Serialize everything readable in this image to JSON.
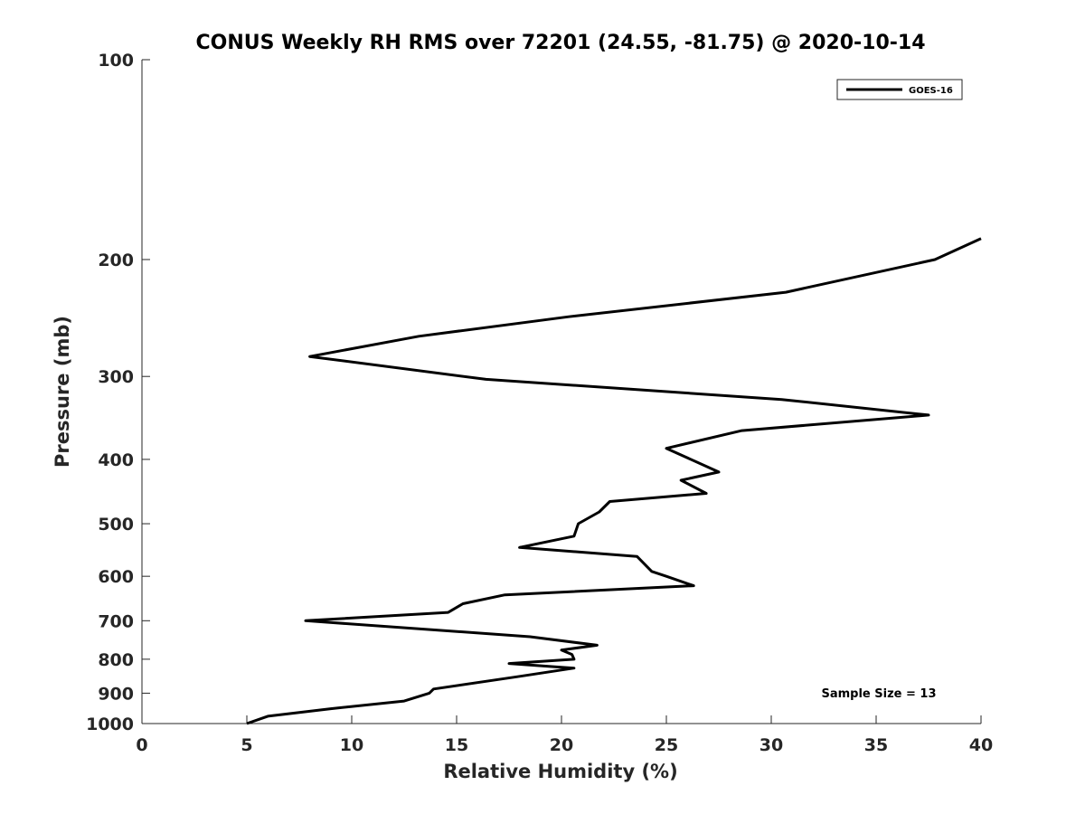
{
  "chart_data": {
    "type": "line",
    "title": "CONUS Weekly RH RMS over 72201 (24.55, -81.75) @ 2020-10-14",
    "xlabel": "Relative Humidity (%)",
    "ylabel": "Pressure (mb)",
    "xlim": [
      0,
      40
    ],
    "ylim": [
      100,
      1000
    ],
    "yscale": "log",
    "y_reversed": true,
    "x_ticks": [
      "0",
      "5",
      "10",
      "15",
      "20",
      "25",
      "30",
      "35",
      "40"
    ],
    "y_ticks": [
      "100",
      "200",
      "300",
      "400",
      "500",
      "600",
      "700",
      "800",
      "900",
      "1000"
    ],
    "grid": false,
    "legend_position": "top-right",
    "series": [
      {
        "name": "GOES-16",
        "color": "#000000",
        "points": [
          [
            5.0,
            1000
          ],
          [
            6.0,
            975
          ],
          [
            9.0,
            950
          ],
          [
            12.5,
            925
          ],
          [
            13.7,
            900
          ],
          [
            13.9,
            887
          ],
          [
            17.9,
            850
          ],
          [
            20.6,
            825
          ],
          [
            17.5,
            812
          ],
          [
            20.6,
            800
          ],
          [
            20.5,
            787
          ],
          [
            20.0,
            775
          ],
          [
            21.7,
            762
          ],
          [
            18.5,
            740
          ],
          [
            7.8,
            700
          ],
          [
            14.6,
            680
          ],
          [
            15.3,
            660
          ],
          [
            17.3,
            640
          ],
          [
            26.3,
            620
          ],
          [
            25.0,
            600
          ],
          [
            24.3,
            590
          ],
          [
            23.6,
            560
          ],
          [
            18.0,
            543
          ],
          [
            20.6,
            522
          ],
          [
            20.8,
            500
          ],
          [
            21.8,
            480
          ],
          [
            22.3,
            463
          ],
          [
            26.9,
            450
          ],
          [
            25.7,
            430
          ],
          [
            27.5,
            418
          ],
          [
            25.0,
            385
          ],
          [
            28.6,
            362
          ],
          [
            37.5,
            343
          ],
          [
            30.5,
            325
          ],
          [
            16.4,
            303
          ],
          [
            8.0,
            280
          ],
          [
            13.2,
            261
          ],
          [
            20.3,
            244
          ],
          [
            30.7,
            224
          ],
          [
            37.8,
            200
          ],
          [
            40.0,
            186
          ]
        ]
      }
    ],
    "annotations": [
      "Sample Size = 13"
    ]
  }
}
